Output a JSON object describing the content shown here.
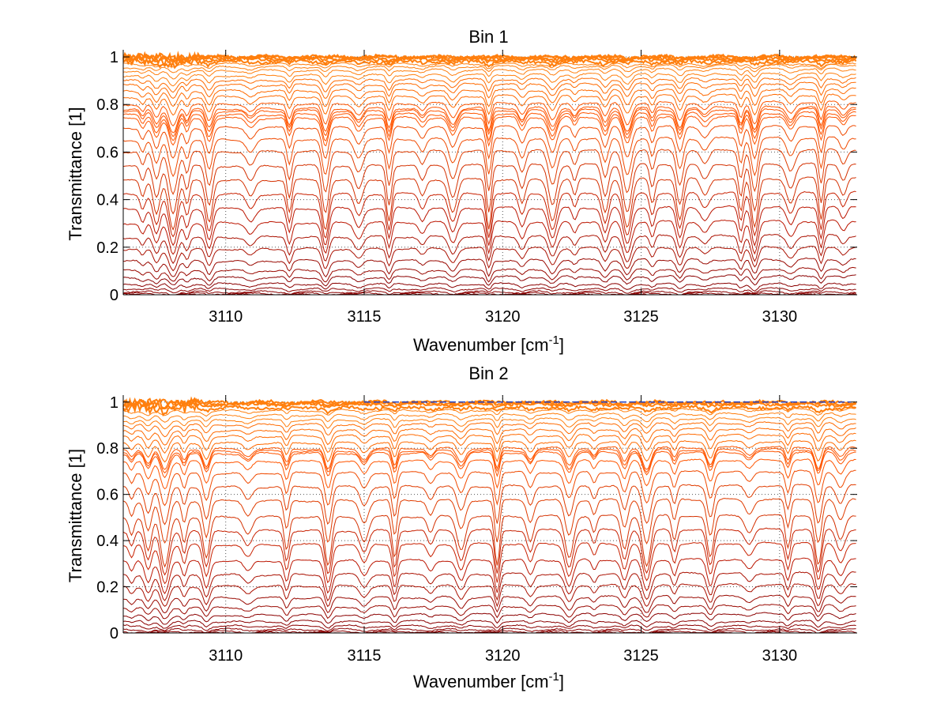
{
  "chart_data": [
    {
      "type": "line",
      "title": "Bin 1",
      "xlabel": "Wavenumber [cm",
      "xlabel_sup": "-1",
      "xlabel_suffix": "]",
      "ylabel": "Transmittance [1]",
      "xlim": [
        3106.3,
        3132.8
      ],
      "ylim": [
        0,
        1.03
      ],
      "xticks": [
        3110,
        3115,
        3120,
        3125,
        3130
      ],
      "yticks": [
        0,
        0.2,
        0.4,
        0.6,
        0.8,
        1
      ],
      "ytick_labels": [
        "0",
        "0.2",
        "0.4",
        "0.6",
        "0.8",
        "1"
      ],
      "grid": true,
      "series_baselines": [
        1.0,
        1.0,
        0.995,
        0.99,
        0.98,
        0.97,
        0.955,
        0.94,
        0.92,
        0.9,
        0.88,
        0.855,
        0.83,
        0.8,
        0.78,
        0.77,
        0.755,
        0.74,
        0.7,
        0.65,
        0.6,
        0.54,
        0.48,
        0.42,
        0.36,
        0.3,
        0.24,
        0.19,
        0.14,
        0.1,
        0.07,
        0.045,
        0.025,
        0.012,
        0.005,
        0.0
      ],
      "absorption_lines": [
        3107.0,
        3107.5,
        3108.1,
        3108.6,
        3109.4,
        3110.9,
        3112.3,
        3113.6,
        3114.8,
        3115.9,
        3117.1,
        3118.2,
        3119.5,
        3120.7,
        3121.8,
        3122.6,
        3123.7,
        3124.5,
        3125.4,
        3126.4,
        3127.3,
        3128.6,
        3129.1,
        3130.4,
        3131.5,
        3132.3
      ],
      "line_colors": [
        "#ff7f0e",
        "#ff6a00",
        "#ff5500",
        "#f04a00",
        "#e03c00",
        "#d43000",
        "#c82000",
        "#bb1500",
        "#aa1000",
        "#990800",
        "#8b0000"
      ]
    },
    {
      "type": "line",
      "title": "Bin 2",
      "xlabel": "Wavenumber [cm",
      "xlabel_sup": "-1",
      "xlabel_suffix": "]",
      "ylabel": "Transmittance [1]",
      "xlim": [
        3106.3,
        3132.8
      ],
      "ylim": [
        0,
        1.03
      ],
      "xticks": [
        3110,
        3115,
        3120,
        3125,
        3130
      ],
      "yticks": [
        0,
        0.2,
        0.4,
        0.6,
        0.8,
        1
      ],
      "ytick_labels": [
        "0",
        "0.2",
        "0.4",
        "0.6",
        "0.8",
        "1"
      ],
      "grid": true,
      "series_baselines": [
        1.005,
        1.0,
        0.995,
        0.99,
        0.975,
        0.96,
        0.94,
        0.92,
        0.9,
        0.875,
        0.85,
        0.82,
        0.795,
        0.785,
        0.775,
        0.74,
        0.69,
        0.63,
        0.57,
        0.5,
        0.44,
        0.38,
        0.31,
        0.25,
        0.2,
        0.15,
        0.11,
        0.075,
        0.05,
        0.03,
        0.015,
        0.006,
        0.0
      ],
      "absorption_lines": [
        3106.6,
        3107.2,
        3107.8,
        3108.5,
        3109.3,
        3110.8,
        3112.2,
        3113.7,
        3115.0,
        3116.1,
        3117.4,
        3118.5,
        3119.8,
        3121.0,
        3122.4,
        3123.3,
        3124.4,
        3125.2,
        3126.2,
        3127.5,
        3128.9,
        3130.3,
        3131.4,
        3132.2
      ],
      "line_colors": [
        "#ff7f0e",
        "#ff6a00",
        "#ff5500",
        "#f04a00",
        "#e03c00",
        "#d43000",
        "#c82000",
        "#bb1500",
        "#aa1000",
        "#990800",
        "#8b0000"
      ],
      "reference_line_color": "#1f3fbf"
    }
  ]
}
